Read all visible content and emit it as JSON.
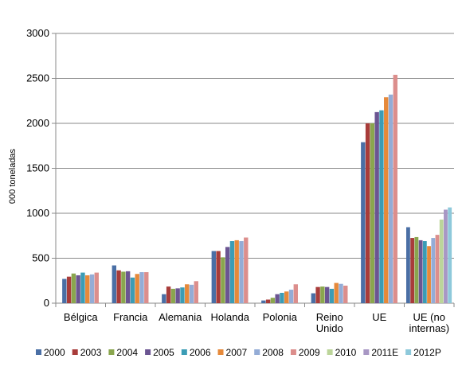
{
  "chart_data": {
    "type": "bar",
    "ylabel": "000 toneladas",
    "ylim": [
      0,
      3000
    ],
    "yticks": [
      0,
      500,
      1000,
      1500,
      2000,
      2500,
      3000
    ],
    "grid": true,
    "legend_position": "bottom",
    "categories": [
      [
        "Bélgica"
      ],
      [
        "Francia"
      ],
      [
        "Alemania"
      ],
      [
        "Holanda"
      ],
      [
        "Polonia"
      ],
      [
        "Reino",
        "Unido"
      ],
      [
        "UE"
      ],
      [
        "UE (no",
        "internas)"
      ]
    ],
    "series": [
      {
        "name": "2000",
        "color": "#4a6fa5",
        "values": [
          270,
          420,
          100,
          580,
          30,
          110,
          1790,
          845
        ]
      },
      {
        "name": "2003",
        "color": "#a83c3a",
        "values": [
          295,
          365,
          185,
          580,
          40,
          180,
          2000,
          725
        ]
      },
      {
        "name": "2004",
        "color": "#8aa64e",
        "values": [
          330,
          350,
          160,
          510,
          60,
          185,
          2000,
          735
        ]
      },
      {
        "name": "2005",
        "color": "#6b5592",
        "values": [
          310,
          355,
          165,
          625,
          100,
          180,
          2125,
          700
        ]
      },
      {
        "name": "2006",
        "color": "#3b9cb5",
        "values": [
          340,
          285,
          175,
          690,
          115,
          160,
          2145,
          690
        ]
      },
      {
        "name": "2007",
        "color": "#e6893a",
        "values": [
          310,
          325,
          210,
          700,
          130,
          225,
          2290,
          635
        ]
      },
      {
        "name": "2008",
        "color": "#94acd6",
        "values": [
          320,
          345,
          205,
          690,
          150,
          215,
          2320,
          725
        ]
      },
      {
        "name": "2009",
        "color": "#dc8e8c",
        "values": [
          340,
          345,
          245,
          730,
          210,
          195,
          2540,
          760
        ]
      },
      {
        "name": "2010",
        "color": "#bcd59a",
        "values": [
          null,
          null,
          null,
          null,
          null,
          null,
          null,
          930
        ]
      },
      {
        "name": "2011E",
        "color": "#a897c4",
        "values": [
          null,
          null,
          null,
          null,
          null,
          null,
          null,
          1040
        ]
      },
      {
        "name": "2012P",
        "color": "#8ec9db",
        "values": [
          null,
          null,
          null,
          null,
          null,
          null,
          null,
          1065
        ]
      }
    ]
  }
}
